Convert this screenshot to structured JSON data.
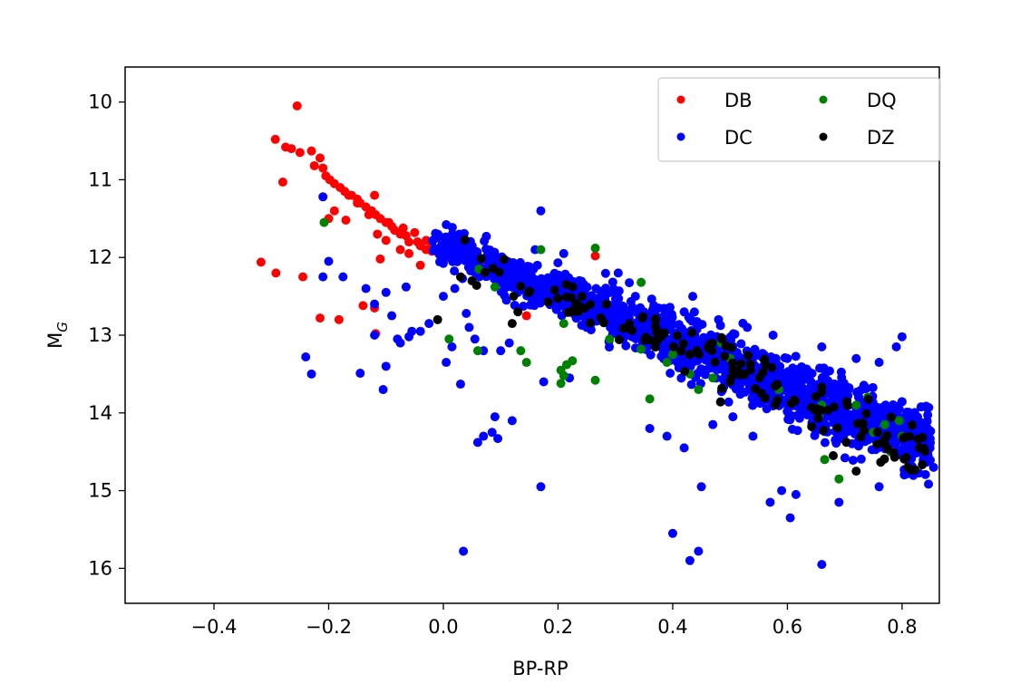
{
  "chart_data": {
    "type": "scatter",
    "title": "",
    "xlabel": "BP-RP",
    "ylabel": "M",
    "ylabel_subscript": "G",
    "xlim": [
      -0.555,
      0.865
    ],
    "ylim": [
      16.45,
      9.55
    ],
    "y_inverted": true,
    "xticks": [
      -0.4,
      -0.2,
      0.0,
      0.2,
      0.4,
      0.6,
      0.8
    ],
    "xtick_labels": [
      "−0.4",
      "−0.2",
      "0.0",
      "0.2",
      "0.4",
      "0.6",
      "0.8"
    ],
    "yticks": [
      10,
      11,
      12,
      13,
      14,
      15,
      16
    ],
    "ytick_labels": [
      "10",
      "11",
      "12",
      "13",
      "14",
      "15",
      "16"
    ],
    "grid": false,
    "legend": {
      "position": "top-right",
      "columns": 2
    },
    "series": [
      {
        "name": "DB",
        "color": "#ff0000",
        "points": [
          [
            -0.255,
            10.05
          ],
          [
            -0.293,
            10.48
          ],
          [
            -0.275,
            10.58
          ],
          [
            -0.265,
            10.6
          ],
          [
            -0.25,
            10.65
          ],
          [
            -0.23,
            10.63
          ],
          [
            -0.215,
            10.72
          ],
          [
            -0.225,
            10.82
          ],
          [
            -0.21,
            10.85
          ],
          [
            -0.205,
            10.95
          ],
          [
            -0.198,
            11.0
          ],
          [
            -0.19,
            11.05
          ],
          [
            -0.18,
            11.1
          ],
          [
            -0.172,
            11.15
          ],
          [
            -0.16,
            11.2
          ],
          [
            -0.15,
            11.25
          ],
          [
            -0.145,
            11.3
          ],
          [
            -0.135,
            11.35
          ],
          [
            -0.125,
            11.4
          ],
          [
            -0.118,
            11.45
          ],
          [
            -0.11,
            11.5
          ],
          [
            -0.1,
            11.55
          ],
          [
            -0.09,
            11.6
          ],
          [
            -0.085,
            11.65
          ],
          [
            -0.075,
            11.7
          ],
          [
            -0.065,
            11.72
          ],
          [
            -0.06,
            11.8
          ],
          [
            -0.04,
            11.85
          ],
          [
            -0.03,
            11.9
          ],
          [
            -0.02,
            11.92
          ],
          [
            -0.01,
            11.93
          ],
          [
            0.0,
            11.9
          ],
          [
            0.01,
            11.95
          ],
          [
            0.03,
            12.0
          ],
          [
            0.04,
            11.98
          ],
          [
            -0.28,
            11.03
          ],
          [
            -0.2,
            11.5
          ],
          [
            -0.19,
            11.4
          ],
          [
            -0.17,
            11.52
          ],
          [
            -0.12,
            11.2
          ],
          [
            -0.13,
            11.45
          ],
          [
            -0.115,
            11.7
          ],
          [
            -0.1,
            11.78
          ],
          [
            -0.095,
            11.55
          ],
          [
            -0.07,
            11.62
          ],
          [
            -0.05,
            11.68
          ],
          [
            -0.03,
            11.78
          ],
          [
            -0.045,
            11.8
          ],
          [
            -0.02,
            11.85
          ],
          [
            -0.11,
            12.02
          ],
          [
            -0.04,
            12.1
          ],
          [
            0.065,
            12.08
          ],
          [
            0.08,
            12.15
          ],
          [
            0.265,
            11.98
          ],
          [
            0.16,
            12.48
          ],
          [
            0.145,
            12.75
          ],
          [
            0.087,
            12.12
          ],
          [
            -0.318,
            12.06
          ],
          [
            -0.292,
            12.2
          ],
          [
            -0.245,
            12.25
          ],
          [
            -0.215,
            12.78
          ],
          [
            -0.182,
            12.8
          ],
          [
            -0.14,
            12.62
          ],
          [
            -0.12,
            12.65
          ],
          [
            -0.118,
            12.98
          ],
          [
            -0.15,
            11.3
          ],
          [
            -0.165,
            11.2
          ],
          [
            -0.075,
            11.9
          ],
          [
            -0.06,
            11.95
          ]
        ]
      },
      {
        "name": "DC",
        "color": "#0000ff",
        "generated": true,
        "main_sequence": {
          "x_range": [
            -0.02,
            0.85
          ],
          "mg_at_x0": 11.85,
          "slope": 3.05,
          "count": 1600
        },
        "outliers": [
          [
            -0.21,
            11.22
          ],
          [
            -0.21,
            12.25
          ],
          [
            0.17,
            11.4
          ],
          [
            0.16,
            11.9
          ],
          [
            0.035,
            15.78
          ],
          [
            0.17,
            14.95
          ],
          [
            0.09,
            14.05
          ],
          [
            0.085,
            14.25
          ],
          [
            0.07,
            14.3
          ],
          [
            0.095,
            14.33
          ],
          [
            0.06,
            14.38
          ],
          [
            0.12,
            14.1
          ],
          [
            -0.24,
            13.28
          ],
          [
            -0.23,
            13.5
          ],
          [
            -0.1,
            13.4
          ],
          [
            -0.145,
            13.49
          ],
          [
            -0.105,
            13.7
          ],
          [
            -0.135,
            12.4
          ],
          [
            -0.065,
            12.38
          ],
          [
            -0.09,
            12.75
          ],
          [
            -0.12,
            13.0
          ],
          [
            -0.08,
            13.05
          ],
          [
            -0.06,
            13.02
          ],
          [
            -0.04,
            12.95
          ],
          [
            0.0,
            12.5
          ],
          [
            0.02,
            12.4
          ],
          [
            0.03,
            13.63
          ],
          [
            0.005,
            13.35
          ],
          [
            0.07,
            13.2
          ],
          [
            0.1,
            13.2
          ],
          [
            0.115,
            13.1
          ],
          [
            0.305,
            12.2
          ],
          [
            0.335,
            12.5
          ],
          [
            0.42,
            12.7
          ],
          [
            0.435,
            12.5
          ],
          [
            0.48,
            12.8
          ],
          [
            0.53,
            12.9
          ],
          [
            0.575,
            13.0
          ],
          [
            0.58,
            13.3
          ],
          [
            0.6,
            13.3
          ],
          [
            0.66,
            13.15
          ],
          [
            0.72,
            13.3
          ],
          [
            0.76,
            13.35
          ],
          [
            0.8,
            13.02
          ],
          [
            0.79,
            13.15
          ],
          [
            0.505,
            14.05
          ],
          [
            0.54,
            14.3
          ],
          [
            0.45,
            14.95
          ],
          [
            0.4,
            15.55
          ],
          [
            0.43,
            15.9
          ],
          [
            0.445,
            15.78
          ],
          [
            0.57,
            15.15
          ],
          [
            0.59,
            15.0
          ],
          [
            0.605,
            15.35
          ],
          [
            0.615,
            15.05
          ],
          [
            0.66,
            15.95
          ],
          [
            0.69,
            15.15
          ],
          [
            0.76,
            14.95
          ],
          [
            0.855,
            14.7
          ],
          [
            0.845,
            14.5
          ],
          [
            0.36,
            14.2
          ],
          [
            0.42,
            14.45
          ],
          [
            0.39,
            14.3
          ],
          [
            0.47,
            14.15
          ],
          [
            0.175,
            13.6
          ],
          [
            0.22,
            13.55
          ],
          [
            0.21,
            11.95
          ],
          [
            0.2,
            12.6
          ],
          [
            0.25,
            12.9
          ],
          [
            0.27,
            12.8
          ],
          [
            0.35,
            12.7
          ],
          [
            0.37,
            13.05
          ],
          [
            -0.055,
            12.95
          ],
          [
            -0.075,
            13.1
          ],
          [
            -0.025,
            12.85
          ],
          [
            0.045,
            12.9
          ],
          [
            0.015,
            13.15
          ],
          [
            0.055,
            13.05
          ],
          [
            0.04,
            12.72
          ],
          [
            0.11,
            12.55
          ],
          [
            0.13,
            12.45
          ],
          [
            -0.1,
            12.45
          ],
          [
            -0.12,
            12.6
          ],
          [
            -0.175,
            12.25
          ],
          [
            -0.2,
            12.05
          ]
        ]
      },
      {
        "name": "DQ",
        "color": "#008000",
        "points": [
          [
            -0.208,
            11.55
          ],
          [
            0.265,
            11.88
          ],
          [
            0.17,
            11.9
          ],
          [
            0.345,
            12.32
          ],
          [
            0.062,
            12.15
          ],
          [
            0.09,
            12.38
          ],
          [
            0.01,
            13.05
          ],
          [
            0.06,
            13.2
          ],
          [
            0.135,
            13.2
          ],
          [
            0.145,
            13.35
          ],
          [
            0.205,
            13.45
          ],
          [
            0.21,
            13.52
          ],
          [
            0.205,
            13.62
          ],
          [
            0.215,
            13.38
          ],
          [
            0.225,
            13.33
          ],
          [
            0.265,
            13.58
          ],
          [
            0.21,
            12.85
          ],
          [
            0.29,
            13.05
          ],
          [
            0.345,
            13.18
          ],
          [
            0.36,
            13.82
          ],
          [
            0.39,
            13.35
          ],
          [
            0.4,
            13.25
          ],
          [
            0.43,
            13.5
          ],
          [
            0.445,
            13.7
          ],
          [
            0.485,
            13.1
          ],
          [
            0.5,
            13.3
          ],
          [
            0.51,
            13.4
          ],
          [
            0.47,
            13.55
          ],
          [
            0.585,
            13.7
          ],
          [
            0.655,
            14.05
          ],
          [
            0.66,
            13.9
          ],
          [
            0.665,
            14.6
          ],
          [
            0.69,
            14.85
          ],
          [
            0.72,
            13.9
          ],
          [
            0.74,
            13.8
          ],
          [
            0.77,
            14.15
          ],
          [
            0.78,
            14.5
          ],
          [
            0.795,
            14.1
          ],
          [
            0.8,
            14.3
          ],
          [
            0.75,
            14.25
          ]
        ]
      },
      {
        "name": "DZ",
        "color": "#000000",
        "generated": true,
        "main_sequence": {
          "x_range": [
            0.03,
            0.84
          ],
          "mg_at_x0": 11.9,
          "slope": 3.1,
          "count": 150
        },
        "outliers": [
          [
            -0.01,
            12.8
          ],
          [
            0.03,
            12.25
          ],
          [
            0.05,
            12.3
          ],
          [
            0.12,
            12.85
          ],
          [
            0.13,
            12.7
          ],
          [
            0.68,
            14.55
          ],
          [
            0.72,
            14.75
          ],
          [
            0.81,
            14.7
          ],
          [
            0.83,
            14.45
          ]
        ]
      }
    ]
  }
}
